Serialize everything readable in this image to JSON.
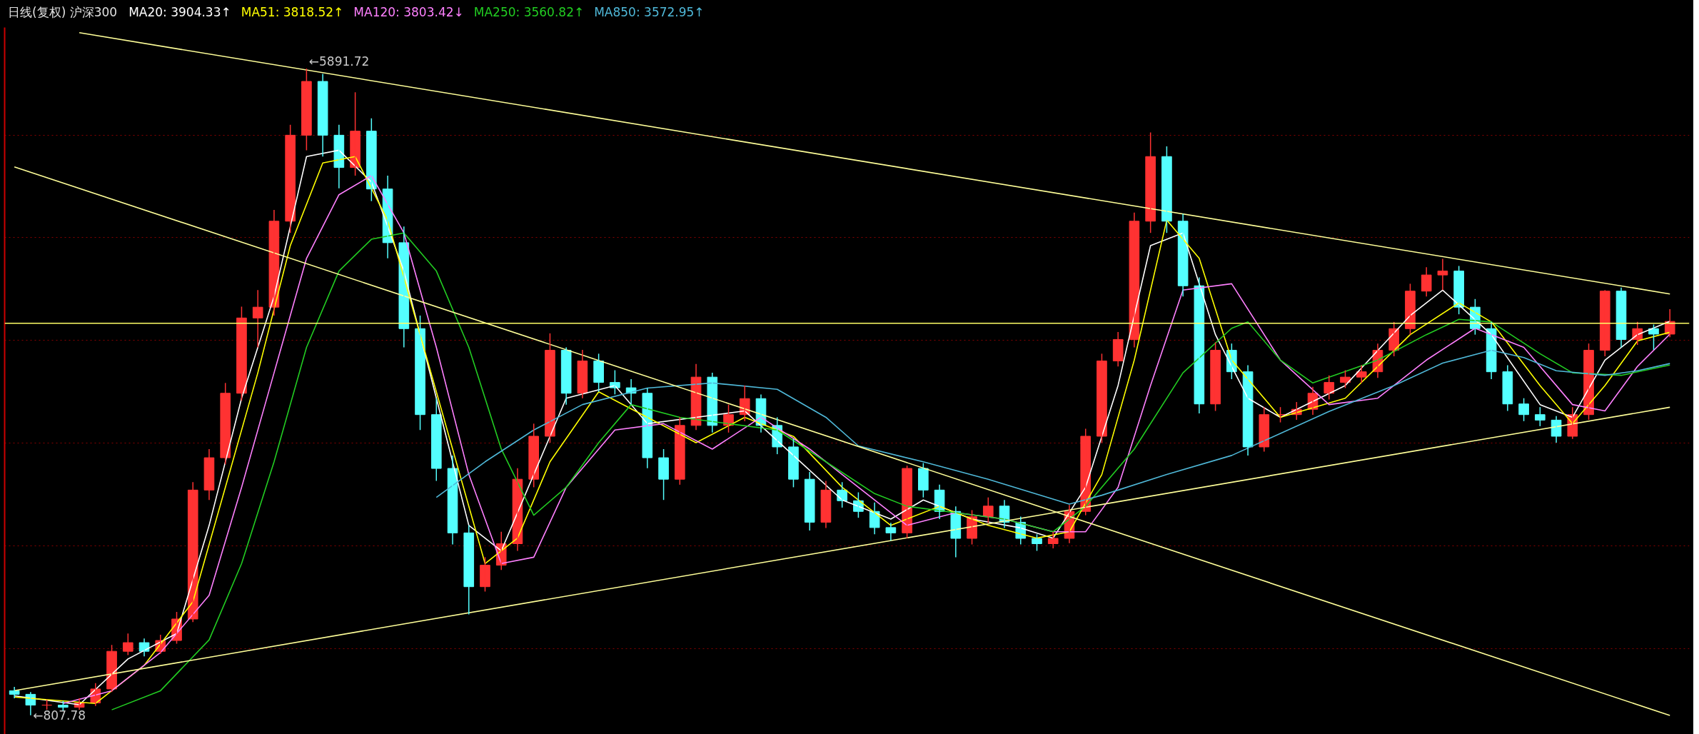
{
  "chart_data": {
    "type": "candlestick",
    "title": "日线(复权)  沪深300",
    "categories": [
      null,
      null,
      null,
      null,
      null,
      null,
      null,
      null,
      null,
      null,
      null,
      null,
      null,
      null,
      null,
      null,
      null,
      null,
      null,
      null,
      null,
      null,
      null,
      null,
      null,
      null,
      null,
      null,
      null,
      null,
      null,
      null,
      null,
      null,
      null,
      null,
      null,
      null,
      null,
      null,
      null,
      null,
      null,
      null,
      null,
      null,
      null,
      null,
      null,
      null,
      null,
      null,
      null,
      null,
      null,
      null,
      null,
      null,
      null,
      null,
      null,
      null,
      null,
      null,
      null,
      null,
      null,
      null,
      null,
      null,
      null,
      null,
      null,
      null,
      null,
      null,
      null,
      null,
      null,
      null,
      null,
      null,
      null,
      null,
      null,
      null,
      null,
      null,
      null,
      null,
      null,
      null,
      null,
      null,
      null,
      null,
      null,
      null,
      null,
      null,
      null,
      null,
      null
    ],
    "ohlc": [
      [
        1000,
        1030,
        940,
        972
      ],
      [
        972,
        990,
        807.78,
        887
      ],
      [
        887,
        930,
        850,
        887
      ],
      [
        887,
        920,
        840,
        870
      ],
      [
        870,
        940,
        850,
        904
      ],
      [
        904,
        1060,
        880,
        1014
      ],
      [
        1014,
        1360,
        990,
        1310
      ],
      [
        1310,
        1450,
        1280,
        1378
      ],
      [
        1378,
        1410,
        1270,
        1310
      ],
      [
        1310,
        1440,
        1290,
        1395
      ],
      [
        1395,
        1620,
        1370,
        1564
      ],
      [
        1564,
        2640,
        1540,
        2578
      ],
      [
        2578,
        2900,
        2500,
        2832
      ],
      [
        2832,
        3420,
        2780,
        3339
      ],
      [
        3339,
        4020,
        3280,
        3931
      ],
      [
        3931,
        4150,
        3700,
        4016
      ],
      [
        4016,
        4780,
        3950,
        4692
      ],
      [
        4692,
        5450,
        4600,
        5368
      ],
      [
        5368,
        5891.72,
        5250,
        5791
      ],
      [
        5791,
        5850,
        5200,
        5368
      ],
      [
        5368,
        5450,
        4950,
        5114
      ],
      [
        5114,
        5706,
        5050,
        5400
      ],
      [
        5400,
        5500,
        4850,
        4945
      ],
      [
        4945,
        5050,
        4400,
        4523
      ],
      [
        4523,
        4650,
        3700,
        3847
      ],
      [
        3847,
        3950,
        3050,
        3171
      ],
      [
        3171,
        3300,
        2650,
        2748
      ],
      [
        2748,
        2850,
        2150,
        2241
      ],
      [
        2241,
        2300,
        1600,
        1818
      ],
      [
        1818,
        2050,
        1780,
        1987
      ],
      [
        1987,
        2250,
        1950,
        2156
      ],
      [
        2156,
        2750,
        2100,
        2663
      ],
      [
        2663,
        3100,
        2600,
        3001
      ],
      [
        3001,
        3810,
        2950,
        3677
      ],
      [
        3677,
        3700,
        3250,
        3339
      ],
      [
        3339,
        3680,
        3300,
        3593
      ],
      [
        3593,
        3650,
        3350,
        3424
      ],
      [
        3424,
        3520,
        3330,
        3382
      ],
      [
        3382,
        3450,
        3250,
        3339
      ],
      [
        3339,
        3380,
        2750,
        2832
      ],
      [
        2832,
        2900,
        2500,
        2663
      ],
      [
        2663,
        3150,
        2620,
        3086
      ],
      [
        3086,
        3570,
        3050,
        3466
      ],
      [
        3466,
        3500,
        3030,
        3086
      ],
      [
        3086,
        3250,
        3030,
        3171
      ],
      [
        3171,
        3400,
        3120,
        3297
      ],
      [
        3297,
        3330,
        3030,
        3086
      ],
      [
        3086,
        3150,
        2860,
        2917
      ],
      [
        2917,
        2980,
        2600,
        2663
      ],
      [
        2663,
        2720,
        2260,
        2325
      ],
      [
        2325,
        2650,
        2280,
        2578
      ],
      [
        2578,
        2640,
        2440,
        2494
      ],
      [
        2494,
        2560,
        2360,
        2410
      ],
      [
        2410,
        2480,
        2230,
        2283
      ],
      [
        2283,
        2320,
        2180,
        2241
      ],
      [
        2241,
        2770,
        2200,
        2748
      ],
      [
        2748,
        2790,
        2520,
        2578
      ],
      [
        2578,
        2620,
        2350,
        2410
      ],
      [
        2410,
        2450,
        2050,
        2198
      ],
      [
        2198,
        2420,
        2150,
        2368
      ],
      [
        2368,
        2520,
        2320,
        2452
      ],
      [
        2452,
        2500,
        2280,
        2325
      ],
      [
        2325,
        2370,
        2150,
        2198
      ],
      [
        2198,
        2230,
        2100,
        2156
      ],
      [
        2156,
        2250,
        2120,
        2198
      ],
      [
        2198,
        2460,
        2160,
        2410
      ],
      [
        2410,
        3060,
        2380,
        3001
      ],
      [
        3001,
        3650,
        2950,
        3593
      ],
      [
        3593,
        3820,
        3550,
        3762
      ],
      [
        3762,
        4760,
        3700,
        4692
      ],
      [
        4692,
        5390,
        4600,
        5200
      ],
      [
        5200,
        5280,
        4600,
        4692
      ],
      [
        4692,
        4750,
        4100,
        4184
      ],
      [
        4184,
        4250,
        3180,
        3255
      ],
      [
        3255,
        3740,
        3200,
        3677
      ],
      [
        3677,
        3730,
        3450,
        3508
      ],
      [
        3508,
        3560,
        2850,
        2917
      ],
      [
        2917,
        3230,
        2880,
        3171
      ],
      [
        3171,
        3230,
        3110,
        3171
      ],
      [
        3171,
        3270,
        3130,
        3213
      ],
      [
        3213,
        3390,
        3170,
        3339
      ],
      [
        3339,
        3480,
        3290,
        3424
      ],
      [
        3424,
        3520,
        3380,
        3466
      ],
      [
        3466,
        3560,
        3420,
        3508
      ],
      [
        3508,
        3730,
        3460,
        3677
      ],
      [
        3677,
        3900,
        3630,
        3847
      ],
      [
        3847,
        4200,
        3800,
        4142
      ],
      [
        4142,
        4330,
        4100,
        4269
      ],
      [
        4269,
        4396,
        4150,
        4300
      ],
      [
        4300,
        4340,
        3960,
        4016
      ],
      [
        4016,
        4080,
        3800,
        3847
      ],
      [
        3847,
        3900,
        3450,
        3508
      ],
      [
        3508,
        3560,
        3200,
        3255
      ],
      [
        3255,
        3300,
        3120,
        3171
      ],
      [
        3171,
        3230,
        3080,
        3128
      ],
      [
        3128,
        3160,
        2950,
        3001
      ],
      [
        3001,
        3230,
        2980,
        3171
      ],
      [
        3171,
        3730,
        3130,
        3677
      ],
      [
        3677,
        4150,
        3630,
        4142
      ],
      [
        4142,
        4170,
        3700,
        3762
      ],
      [
        3762,
        3900,
        3720,
        3847
      ],
      [
        3847,
        3880,
        3680,
        3804
      ],
      [
        3804,
        4000,
        3780,
        3904
      ]
    ],
    "colors": [
      "#54ffff",
      "#54ffff",
      "#ff3232",
      "#54ffff",
      "#ff3232",
      "#ff3232",
      "#ff3232",
      "#ff3232",
      "#54ffff",
      "#ff3232",
      "#ff3232",
      "#ff3232",
      "#ff3232",
      "#ff3232",
      "#ff3232",
      "#ff3232",
      "#ff3232",
      "#ff3232",
      "#ff3232",
      "#54ffff",
      "#54ffff",
      "#ff3232",
      "#54ffff",
      "#54ffff",
      "#54ffff",
      "#54ffff",
      "#54ffff",
      "#54ffff",
      "#54ffff",
      "#ff3232",
      "#ff3232",
      "#ff3232",
      "#ff3232",
      "#ff3232",
      "#54ffff",
      "#ff3232",
      "#54ffff",
      "#54ffff",
      "#54ffff",
      "#54ffff",
      "#54ffff",
      "#ff3232",
      "#ff3232",
      "#54ffff",
      "#ff3232",
      "#ff3232",
      "#54ffff",
      "#54ffff",
      "#54ffff",
      "#54ffff",
      "#ff3232",
      "#54ffff",
      "#54ffff",
      "#54ffff",
      "#54ffff",
      "#ff3232",
      "#54ffff",
      "#54ffff",
      "#54ffff",
      "#ff3232",
      "#ff3232",
      "#54ffff",
      "#54ffff",
      "#54ffff",
      "#ff3232",
      "#ff3232",
      "#ff3232",
      "#ff3232",
      "#ff3232",
      "#ff3232",
      "#ff3232",
      "#54ffff",
      "#54ffff",
      "#54ffff",
      "#ff3232",
      "#54ffff",
      "#54ffff",
      "#ff3232",
      "#ff3232",
      "#ff3232",
      "#ff3232",
      "#ff3232",
      "#ff3232",
      "#ff3232",
      "#ff3232",
      "#ff3232",
      "#ff3232",
      "#ff3232",
      "#ff3232",
      "#54ffff",
      "#54ffff",
      "#54ffff",
      "#54ffff",
      "#54ffff",
      "#54ffff",
      "#54ffff",
      "#ff3232",
      "#ff3232",
      "#ff3232",
      "#54ffff",
      "#ff3232",
      "#54ffff",
      "#ff3232"
    ],
    "series": [
      {
        "type": "line",
        "name": "MA20: 3904.33↑",
        "color": "#ffffff",
        "values": [
          960,
          null,
          null,
          null,
          890,
          null,
          null,
          1250,
          null,
          null,
          1450,
          null,
          2300,
          null,
          3300,
          null,
          4100,
          null,
          5200,
          null,
          5250,
          null,
          5000,
          null,
          4300,
          null,
          3300,
          null,
          2300,
          null,
          2100,
          null,
          2700,
          null,
          3300,
          null,
          null,
          3400,
          null,
          3100,
          null,
          null,
          3150,
          null,
          null,
          3200,
          null,
          null,
          2850,
          null,
          null,
          2500,
          null,
          null,
          2350,
          null,
          2500,
          null,
          null,
          2350,
          null,
          null,
          2280,
          null,
          2200,
          null,
          2600,
          null,
          3400,
          null,
          4500,
          null,
          4600,
          null,
          3800,
          null,
          3300,
          null,
          3150,
          null,
          null,
          null,
          3400,
          null,
          null,
          null,
          3950,
          null,
          4150,
          null,
          null,
          3800,
          null,
          null,
          3250,
          null,
          3150,
          null,
          3600,
          null,
          3800,
          null,
          3904.33
        ]
      },
      {
        "type": "line",
        "name": "MA51: 3818.52↑",
        "color": "#ffff00",
        "values": [
          950,
          null,
          null,
          null,
          null,
          900,
          null,
          null,
          1200,
          null,
          null,
          1700,
          null,
          2600,
          null,
          3500,
          null,
          4500,
          null,
          5150,
          null,
          5200,
          null,
          4700,
          null,
          3800,
          null,
          2900,
          null,
          2000,
          null,
          2200,
          null,
          2800,
          null,
          null,
          3350,
          null,
          null,
          3150,
          null,
          null,
          2950,
          null,
          null,
          3150,
          null,
          null,
          3000,
          null,
          null,
          2600,
          null,
          null,
          2300,
          null,
          null,
          2450,
          null,
          null,
          2300,
          null,
          null,
          2200,
          null,
          2250,
          null,
          2700,
          null,
          3600,
          null,
          4700,
          null,
          4400,
          null,
          3600,
          null,
          null,
          3150,
          null,
          null,
          null,
          3300,
          null,
          null,
          null,
          3800,
          null,
          null,
          4050,
          null,
          3900,
          null,
          null,
          3400,
          null,
          3100,
          null,
          3400,
          null,
          3750,
          null,
          3818.52
        ]
      },
      {
        "type": "line",
        "name": "MA120: 3803.42↓",
        "color": "#ff80ff",
        "values": [
          null,
          null,
          null,
          900,
          null,
          null,
          1000,
          null,
          null,
          1300,
          null,
          null,
          1750,
          null,
          2600,
          null,
          3500,
          null,
          4400,
          null,
          4900,
          null,
          5050,
          null,
          4600,
          null,
          3700,
          null,
          2700,
          null,
          2000,
          null,
          2050,
          null,
          2600,
          null,
          null,
          3050,
          null,
          null,
          3100,
          null,
          null,
          2900,
          null,
          null,
          3150,
          null,
          null,
          2900,
          null,
          null,
          2600,
          null,
          null,
          2300,
          null,
          null,
          2400,
          null,
          null,
          2350,
          null,
          null,
          2250,
          null,
          2250,
          null,
          2600,
          null,
          3400,
          null,
          4150,
          null,
          null,
          4200,
          null,
          null,
          3600,
          null,
          null,
          3250,
          null,
          null,
          3300,
          null,
          null,
          3600,
          null,
          null,
          3850,
          null,
          null,
          3700,
          null,
          null,
          3250,
          null,
          3200,
          null,
          3550,
          null,
          3803.42
        ]
      },
      {
        "type": "line",
        "name": "MA250: 3560.82↑",
        "color": "#22cc22",
        "values": [
          null,
          null,
          null,
          null,
          null,
          null,
          850,
          null,
          null,
          1000,
          null,
          null,
          1400,
          null,
          2000,
          null,
          2800,
          null,
          3700,
          null,
          4300,
          null,
          4550,
          null,
          4600,
          null,
          4300,
          null,
          3700,
          null,
          2900,
          null,
          2380,
          null,
          2600,
          null,
          2950,
          null,
          3250,
          null,
          null,
          3150,
          null,
          null,
          3100,
          null,
          null,
          3050,
          null,
          null,
          2800,
          null,
          null,
          2550,
          null,
          2450,
          null,
          null,
          2400,
          null,
          null,
          2350,
          null,
          null,
          2250,
          null,
          2450,
          null,
          null,
          2900,
          null,
          null,
          3500,
          null,
          null,
          3850,
          3900,
          null,
          3600,
          null,
          3420,
          null,
          null,
          null,
          3600,
          null,
          null,
          3800,
          null,
          3920,
          null,
          3900,
          null,
          null,
          3650,
          null,
          3500,
          null,
          null,
          3480,
          null,
          null,
          3560.82
        ]
      },
      {
        "type": "line",
        "name": "MA850: 3572.95↑",
        "color": "#4fb8d8",
        "values": [
          null,
          null,
          null,
          null,
          null,
          null,
          null,
          null,
          null,
          null,
          null,
          null,
          null,
          null,
          null,
          null,
          null,
          null,
          null,
          null,
          null,
          null,
          null,
          null,
          null,
          null,
          2520,
          null,
          null,
          2800,
          null,
          null,
          3050,
          null,
          null,
          3250,
          null,
          null,
          null,
          3380,
          null,
          null,
          null,
          3420,
          null,
          null,
          null,
          3370,
          null,
          null,
          3150,
          null,
          2925,
          null,
          null,
          null,
          2800,
          null,
          null,
          null,
          2663,
          null,
          null,
          null,
          null,
          2468,
          null,
          2537,
          null,
          null,
          null,
          2700,
          null,
          null,
          null,
          2850,
          null,
          null,
          null,
          null,
          null,
          3196,
          null,
          null,
          null,
          3400,
          null,
          null,
          3576,
          null,
          null,
          3677,
          null,
          3620,
          null,
          3516,
          null,
          null,
          3480,
          null,
          3516,
          null,
          3572.95
        ]
      },
      {
        "type": "line",
        "color": "#ffff99",
        "values": [
          null,
          null,
          null,
          null,
          6174,
          null,
          null,
          null,
          null,
          null,
          null,
          null,
          null,
          null,
          null,
          null,
          null,
          null,
          null,
          null,
          null,
          null,
          null,
          null,
          null,
          null,
          null,
          null,
          null,
          null,
          null,
          null,
          null,
          null,
          null,
          null,
          null,
          null,
          null,
          null,
          null,
          null,
          null,
          null,
          null,
          null,
          null,
          null,
          null,
          null,
          null,
          null,
          null,
          null,
          null,
          null,
          null,
          null,
          null,
          null,
          null,
          null,
          null,
          null,
          null,
          null,
          null,
          null,
          null,
          null,
          null,
          null,
          null,
          null,
          null,
          null,
          null,
          null,
          null,
          null,
          null,
          null,
          null,
          null,
          null,
          null,
          null,
          null,
          null,
          null,
          null,
          null,
          null,
          null,
          null,
          null,
          null,
          null,
          null,
          null,
          null,
          null,
          4120
        ]
      },
      {
        "type": "line",
        "color": "#ffff99",
        "values": [
          5119,
          null,
          null,
          null,
          null,
          null,
          null,
          null,
          null,
          null,
          null,
          null,
          null,
          null,
          null,
          null,
          null,
          null,
          null,
          null,
          null,
          null,
          null,
          null,
          null,
          null,
          null,
          null,
          null,
          null,
          null,
          null,
          null,
          null,
          null,
          null,
          null,
          null,
          null,
          null,
          null,
          null,
          null,
          null,
          null,
          null,
          null,
          null,
          null,
          null,
          null,
          null,
          null,
          null,
          null,
          null,
          null,
          null,
          null,
          null,
          null,
          null,
          null,
          null,
          null,
          null,
          null,
          null,
          null,
          null,
          null,
          null,
          null,
          null,
          null,
          null,
          null,
          null,
          null,
          null,
          null,
          null,
          null,
          null,
          null,
          null,
          null,
          null,
          null,
          null,
          null,
          null,
          null,
          null,
          null,
          null,
          null,
          null,
          null,
          null,
          null,
          null,
          806
        ]
      },
      {
        "type": "line",
        "color": "#ffff99",
        "values": [
          1001,
          null,
          null,
          null,
          null,
          null,
          null,
          null,
          null,
          null,
          null,
          null,
          null,
          null,
          null,
          null,
          null,
          null,
          null,
          null,
          null,
          null,
          null,
          null,
          null,
          null,
          null,
          null,
          null,
          null,
          null,
          null,
          null,
          null,
          null,
          null,
          null,
          null,
          null,
          null,
          null,
          null,
          null,
          null,
          null,
          null,
          null,
          null,
          null,
          null,
          null,
          null,
          null,
          null,
          null,
          null,
          null,
          null,
          null,
          null,
          null,
          null,
          null,
          null,
          null,
          null,
          null,
          null,
          null,
          null,
          null,
          null,
          null,
          null,
          null,
          null,
          null,
          null,
          null,
          null,
          null,
          null,
          null,
          null,
          null,
          null,
          null,
          null,
          null,
          null,
          null,
          null,
          null,
          null,
          null,
          null,
          null,
          null,
          null,
          null,
          null,
          null,
          3229
        ]
      }
    ],
    "ref_lines": [
      {
        "axis": "y",
        "value": 3890,
        "color": "#ffff66"
      }
    ],
    "annotations": [
      "←5891.72",
      "←807.78"
    ],
    "ylim": [
      657,
      6215
    ],
    "yticks": [
      {
        "value": 1330,
        "label": null
      },
      {
        "value": 2138,
        "label": null
      },
      {
        "value": 2946,
        "label": null
      },
      {
        "value": 3754,
        "label": null
      },
      {
        "value": 4562,
        "label": null
      },
      {
        "value": 5370,
        "label": null
      }
    ],
    "grid": "y"
  }
}
